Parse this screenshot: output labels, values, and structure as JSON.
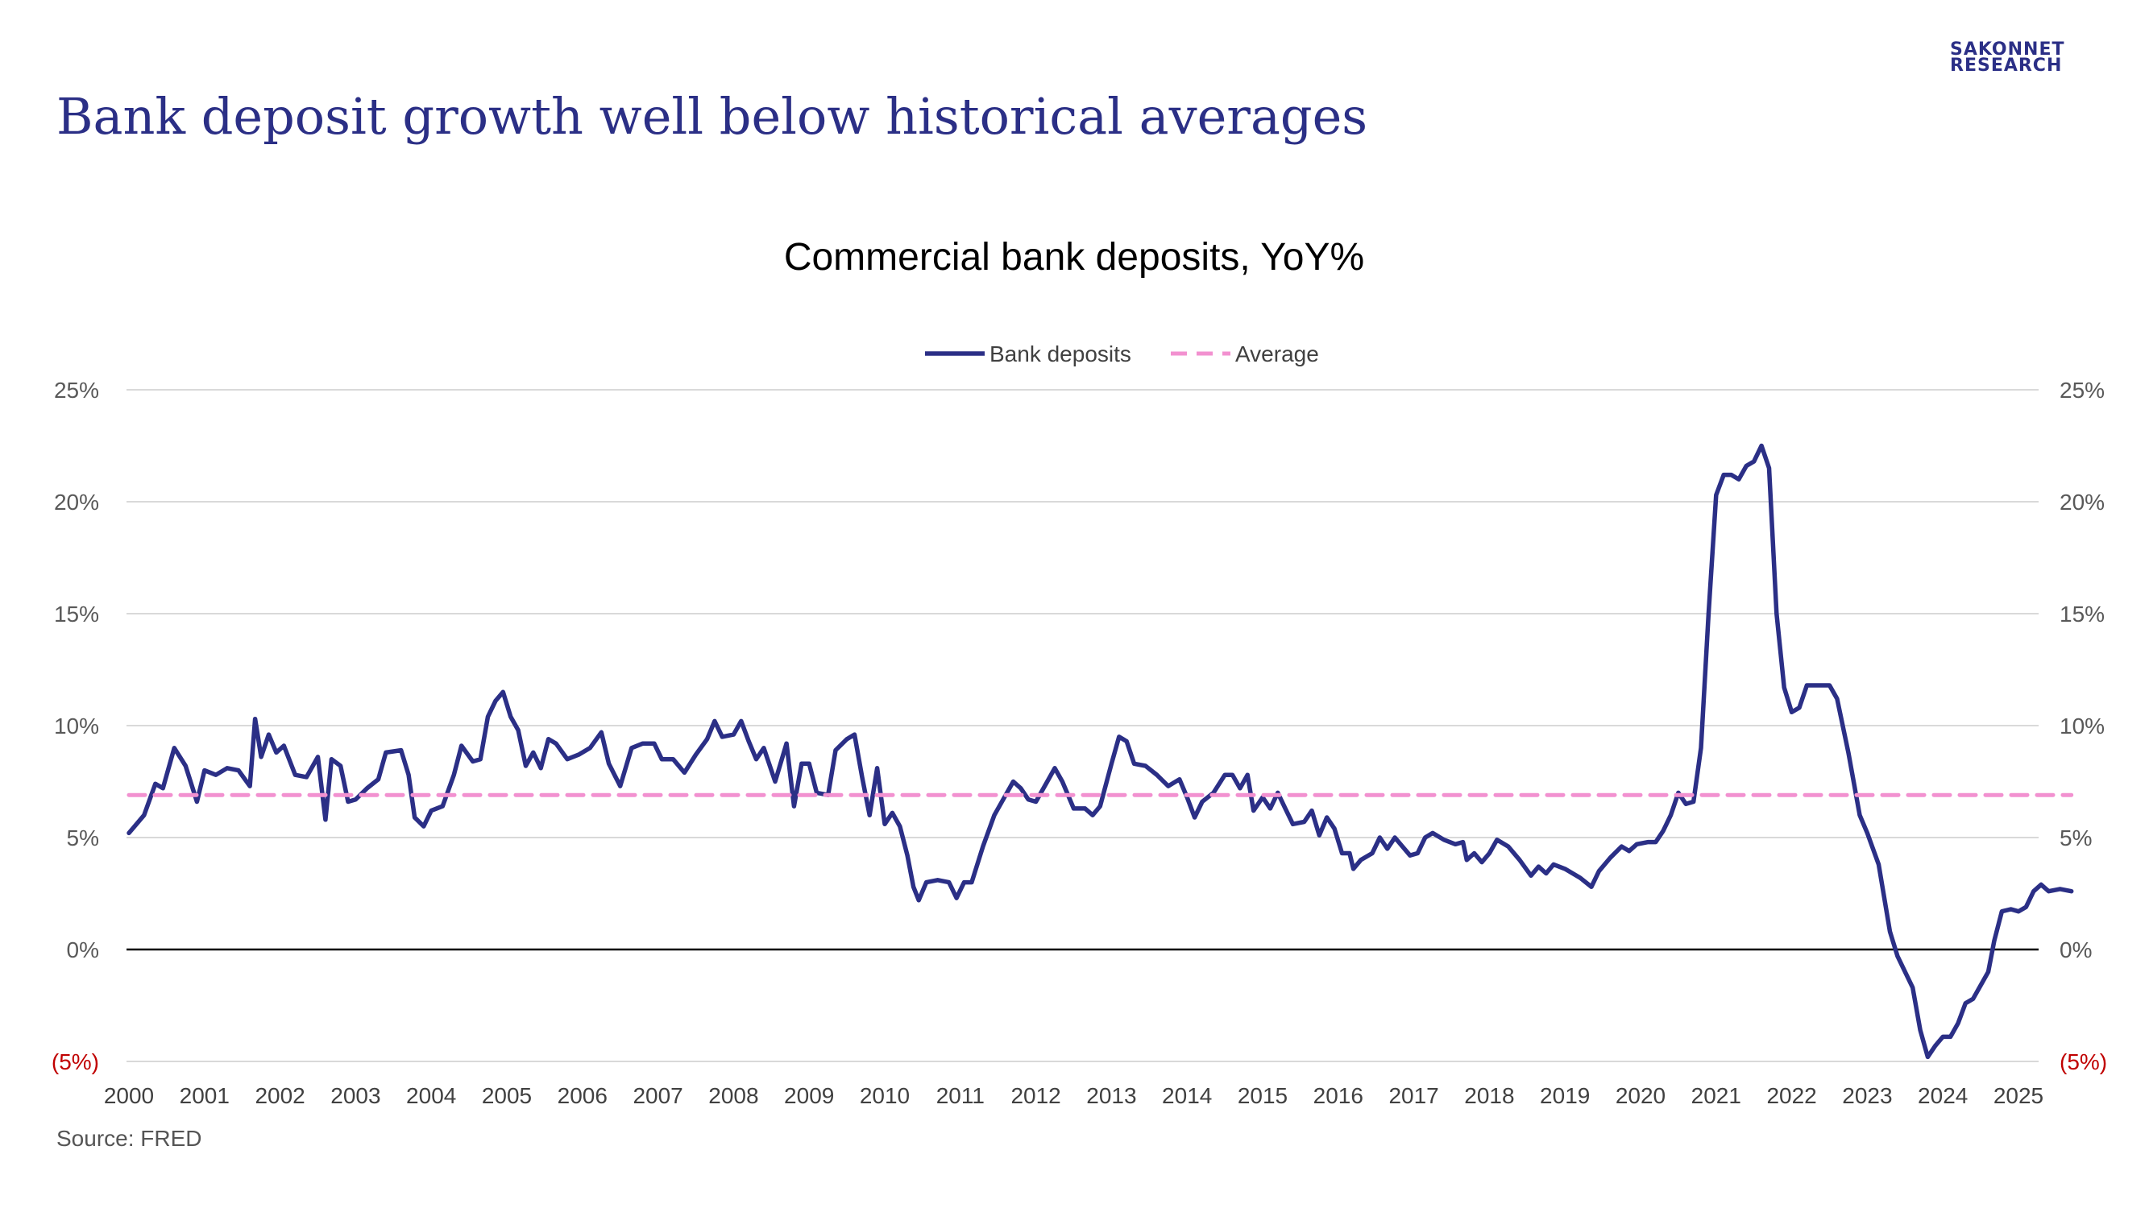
{
  "header": {
    "title": "Bank deposit growth well below historical averages",
    "logo_line1": "SAKONNET",
    "logo_line2": "RESEARCH"
  },
  "footer": {
    "source": "Source: FRED"
  },
  "colors": {
    "brand": "#2b2f86",
    "series_deposits": "#2b2f86",
    "series_average": "#f291d0",
    "negative_label": "#c00000",
    "gridline": "#d9d9d9",
    "zero_line": "#000000"
  },
  "chart_data": {
    "type": "line",
    "title": "Commercial bank deposits, YoY%",
    "xlabel": "",
    "ylabel": "",
    "legend_position": "top-center",
    "grid": true,
    "ylim": [
      -5,
      25
    ],
    "y_ticks": [
      25,
      20,
      15,
      10,
      5,
      0,
      -5
    ],
    "y_tick_labels": [
      "25%",
      "20%",
      "15%",
      "10%",
      "5%",
      "0%",
      "(5%)"
    ],
    "x_tick_labels": [
      "2000",
      "2001",
      "2002",
      "2003",
      "2004",
      "2005",
      "2006",
      "2007",
      "2008",
      "2009",
      "2010",
      "2011",
      "2012",
      "2013",
      "2014",
      "2015",
      "2016",
      "2017",
      "2018",
      "2019",
      "2020",
      "2021",
      "2022",
      "2023",
      "2024",
      "2025"
    ],
    "xlim": [
      2000,
      2025.2
    ],
    "series": [
      {
        "name": "Bank deposits",
        "style": "solid",
        "points": [
          [
            2000.0,
            5.2
          ],
          [
            2000.2,
            6.0
          ],
          [
            2000.35,
            7.4
          ],
          [
            2000.45,
            7.2
          ],
          [
            2000.6,
            9.0
          ],
          [
            2000.75,
            8.2
          ],
          [
            2000.9,
            6.6
          ],
          [
            2001.0,
            8.0
          ],
          [
            2001.15,
            7.8
          ],
          [
            2001.3,
            8.1
          ],
          [
            2001.45,
            8.0
          ],
          [
            2001.6,
            7.3
          ],
          [
            2001.67,
            10.3
          ],
          [
            2001.75,
            8.6
          ],
          [
            2001.85,
            9.6
          ],
          [
            2001.95,
            8.8
          ],
          [
            2002.05,
            9.1
          ],
          [
            2002.2,
            7.8
          ],
          [
            2002.35,
            7.7
          ],
          [
            2002.5,
            8.6
          ],
          [
            2002.6,
            5.8
          ],
          [
            2002.68,
            8.5
          ],
          [
            2002.8,
            8.2
          ],
          [
            2002.9,
            6.6
          ],
          [
            2003.0,
            6.7
          ],
          [
            2003.15,
            7.2
          ],
          [
            2003.3,
            7.6
          ],
          [
            2003.4,
            8.8
          ],
          [
            2003.6,
            8.9
          ],
          [
            2003.7,
            7.8
          ],
          [
            2003.78,
            5.9
          ],
          [
            2003.9,
            5.5
          ],
          [
            2004.0,
            6.2
          ],
          [
            2004.15,
            6.4
          ],
          [
            2004.3,
            7.8
          ],
          [
            2004.4,
            9.1
          ],
          [
            2004.55,
            8.4
          ],
          [
            2004.65,
            8.5
          ],
          [
            2004.75,
            10.4
          ],
          [
            2004.85,
            11.1
          ],
          [
            2004.95,
            11.5
          ],
          [
            2005.05,
            10.4
          ],
          [
            2005.15,
            9.8
          ],
          [
            2005.25,
            8.2
          ],
          [
            2005.35,
            8.8
          ],
          [
            2005.45,
            8.1
          ],
          [
            2005.55,
            9.4
          ],
          [
            2005.65,
            9.2
          ],
          [
            2005.8,
            8.5
          ],
          [
            2005.95,
            8.7
          ],
          [
            2006.1,
            9.0
          ],
          [
            2006.25,
            9.7
          ],
          [
            2006.35,
            8.3
          ],
          [
            2006.5,
            7.3
          ],
          [
            2006.65,
            9.0
          ],
          [
            2006.8,
            9.2
          ],
          [
            2006.95,
            9.2
          ],
          [
            2007.05,
            8.5
          ],
          [
            2007.2,
            8.5
          ],
          [
            2007.35,
            7.9
          ],
          [
            2007.5,
            8.7
          ],
          [
            2007.65,
            9.4
          ],
          [
            2007.75,
            10.2
          ],
          [
            2007.85,
            9.5
          ],
          [
            2008.0,
            9.6
          ],
          [
            2008.1,
            10.2
          ],
          [
            2008.2,
            9.3
          ],
          [
            2008.3,
            8.5
          ],
          [
            2008.4,
            9.0
          ],
          [
            2008.55,
            7.5
          ],
          [
            2008.7,
            9.2
          ],
          [
            2008.8,
            6.4
          ],
          [
            2008.9,
            8.3
          ],
          [
            2009.0,
            8.3
          ],
          [
            2009.1,
            7.0
          ],
          [
            2009.25,
            6.9
          ],
          [
            2009.35,
            8.9
          ],
          [
            2009.5,
            9.4
          ],
          [
            2009.6,
            9.6
          ],
          [
            2009.7,
            7.7
          ],
          [
            2009.8,
            6.0
          ],
          [
            2009.9,
            8.1
          ],
          [
            2010.0,
            5.6
          ],
          [
            2010.1,
            6.1
          ],
          [
            2010.2,
            5.5
          ],
          [
            2010.3,
            4.2
          ],
          [
            2010.38,
            2.8
          ],
          [
            2010.45,
            2.2
          ],
          [
            2010.55,
            3.0
          ],
          [
            2010.7,
            3.1
          ],
          [
            2010.85,
            3.0
          ],
          [
            2010.95,
            2.3
          ],
          [
            2011.05,
            3.0
          ],
          [
            2011.15,
            3.0
          ],
          [
            2011.3,
            4.6
          ],
          [
            2011.45,
            6.0
          ],
          [
            2011.6,
            6.9
          ],
          [
            2011.7,
            7.5
          ],
          [
            2011.8,
            7.2
          ],
          [
            2011.9,
            6.7
          ],
          [
            2012.0,
            6.6
          ],
          [
            2012.15,
            7.5
          ],
          [
            2012.25,
            8.1
          ],
          [
            2012.35,
            7.5
          ],
          [
            2012.5,
            6.3
          ],
          [
            2012.65,
            6.3
          ],
          [
            2012.75,
            6.0
          ],
          [
            2012.85,
            6.4
          ],
          [
            2013.0,
            8.3
          ],
          [
            2013.1,
            9.5
          ],
          [
            2013.2,
            9.3
          ],
          [
            2013.3,
            8.3
          ],
          [
            2013.45,
            8.2
          ],
          [
            2013.6,
            7.8
          ],
          [
            2013.75,
            7.3
          ],
          [
            2013.9,
            7.6
          ],
          [
            2014.0,
            6.8
          ],
          [
            2014.1,
            5.9
          ],
          [
            2014.2,
            6.6
          ],
          [
            2014.35,
            7.0
          ],
          [
            2014.5,
            7.8
          ],
          [
            2014.6,
            7.8
          ],
          [
            2014.7,
            7.2
          ],
          [
            2014.8,
            7.8
          ],
          [
            2014.88,
            6.2
          ],
          [
            2015.0,
            6.8
          ],
          [
            2015.1,
            6.3
          ],
          [
            2015.2,
            7.0
          ],
          [
            2015.3,
            6.3
          ],
          [
            2015.4,
            5.6
          ],
          [
            2015.55,
            5.7
          ],
          [
            2015.65,
            6.2
          ],
          [
            2015.75,
            5.1
          ],
          [
            2015.85,
            5.9
          ],
          [
            2015.95,
            5.4
          ],
          [
            2016.05,
            4.3
          ],
          [
            2016.15,
            4.3
          ],
          [
            2016.2,
            3.6
          ],
          [
            2016.3,
            4.0
          ],
          [
            2016.45,
            4.3
          ],
          [
            2016.55,
            5.0
          ],
          [
            2016.65,
            4.5
          ],
          [
            2016.75,
            5.0
          ],
          [
            2016.85,
            4.6
          ],
          [
            2016.95,
            4.2
          ],
          [
            2017.05,
            4.3
          ],
          [
            2017.15,
            5.0
          ],
          [
            2017.25,
            5.2
          ],
          [
            2017.4,
            4.9
          ],
          [
            2017.55,
            4.7
          ],
          [
            2017.65,
            4.8
          ],
          [
            2017.7,
            4.0
          ],
          [
            2017.8,
            4.3
          ],
          [
            2017.9,
            3.9
          ],
          [
            2018.0,
            4.3
          ],
          [
            2018.1,
            4.9
          ],
          [
            2018.25,
            4.6
          ],
          [
            2018.4,
            4.0
          ],
          [
            2018.55,
            3.3
          ],
          [
            2018.65,
            3.7
          ],
          [
            2018.75,
            3.4
          ],
          [
            2018.85,
            3.8
          ],
          [
            2019.0,
            3.6
          ],
          [
            2019.2,
            3.2
          ],
          [
            2019.35,
            2.8
          ],
          [
            2019.45,
            3.5
          ],
          [
            2019.6,
            4.1
          ],
          [
            2019.75,
            4.6
          ],
          [
            2019.85,
            4.4
          ],
          [
            2019.95,
            4.7
          ],
          [
            2020.1,
            4.8
          ],
          [
            2020.2,
            4.8
          ],
          [
            2020.3,
            5.3
          ],
          [
            2020.4,
            6.0
          ],
          [
            2020.5,
            7.0
          ],
          [
            2020.6,
            6.5
          ],
          [
            2020.7,
            6.6
          ],
          [
            2020.8,
            9.0
          ],
          [
            2020.9,
            15.0
          ],
          [
            2021.0,
            20.3
          ],
          [
            2021.1,
            21.2
          ],
          [
            2021.2,
            21.2
          ],
          [
            2021.3,
            21.0
          ],
          [
            2021.4,
            21.6
          ],
          [
            2021.5,
            21.8
          ],
          [
            2021.6,
            22.5
          ],
          [
            2021.7,
            21.5
          ],
          [
            2021.8,
            15.0
          ],
          [
            2021.9,
            11.7
          ],
          [
            2022.0,
            10.6
          ],
          [
            2022.1,
            10.8
          ],
          [
            2022.2,
            11.8
          ],
          [
            2022.35,
            11.8
          ],
          [
            2022.5,
            11.8
          ],
          [
            2022.6,
            11.2
          ],
          [
            2022.75,
            8.8
          ],
          [
            2022.9,
            6.0
          ],
          [
            2023.0,
            5.2
          ],
          [
            2023.15,
            3.8
          ],
          [
            2023.3,
            0.8
          ],
          [
            2023.4,
            -0.3
          ],
          [
            2023.5,
            -1.0
          ],
          [
            2023.6,
            -1.7
          ],
          [
            2023.7,
            -3.6
          ],
          [
            2023.8,
            -4.8
          ],
          [
            2023.9,
            -4.3
          ],
          [
            2024.0,
            -3.9
          ],
          [
            2024.1,
            -3.9
          ],
          [
            2024.2,
            -3.3
          ],
          [
            2024.3,
            -2.4
          ],
          [
            2024.4,
            -2.2
          ],
          [
            2024.5,
            -1.6
          ],
          [
            2024.6,
            -1.0
          ],
          [
            2024.68,
            0.4
          ],
          [
            2024.78,
            1.7
          ],
          [
            2024.9,
            1.8
          ],
          [
            2025.0,
            1.7
          ],
          [
            2025.1,
            1.9
          ],
          [
            2025.2,
            2.6
          ],
          [
            2025.3,
            2.9
          ],
          [
            2025.4,
            2.6
          ],
          [
            2025.55,
            2.7
          ],
          [
            2025.7,
            2.6
          ]
        ]
      },
      {
        "name": "Average",
        "style": "dashed",
        "points": [
          [
            2000.0,
            6.9
          ],
          [
            2025.7,
            6.9
          ]
        ]
      }
    ]
  }
}
